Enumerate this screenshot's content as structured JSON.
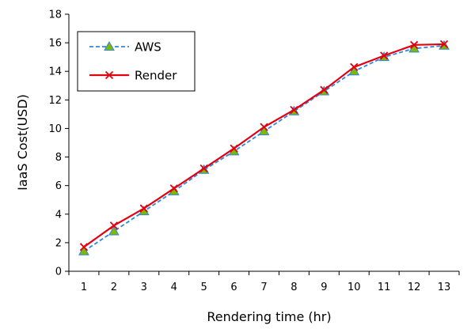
{
  "chart_data": {
    "type": "line",
    "title": "",
    "xlabel": "Rendering time (hr)",
    "ylabel": "IaaS Cost(USD)",
    "x": [
      1,
      2,
      3,
      4,
      5,
      6,
      7,
      8,
      9,
      10,
      11,
      12,
      13
    ],
    "ylim": [
      0,
      18
    ],
    "yticks": [
      0,
      2,
      4,
      6,
      8,
      10,
      12,
      14,
      16,
      18
    ],
    "grid": false,
    "legend_position": "top-left",
    "series": [
      {
        "name": "AWS",
        "values": [
          1.4,
          2.8,
          4.2,
          5.6,
          7.1,
          8.4,
          9.8,
          11.2,
          12.6,
          14.0,
          15.0,
          15.6,
          15.8
        ],
        "color": "#2e86de",
        "line_style": "dashed",
        "marker": "triangle",
        "marker_color": "#7fb800"
      },
      {
        "name": "Render",
        "values": [
          1.7,
          3.2,
          4.4,
          5.8,
          7.2,
          8.6,
          10.1,
          11.3,
          12.7,
          14.3,
          15.1,
          15.85,
          15.9
        ],
        "color": "#e3000f",
        "line_style": "solid",
        "marker": "x",
        "marker_color": "#e3000f"
      }
    ]
  }
}
